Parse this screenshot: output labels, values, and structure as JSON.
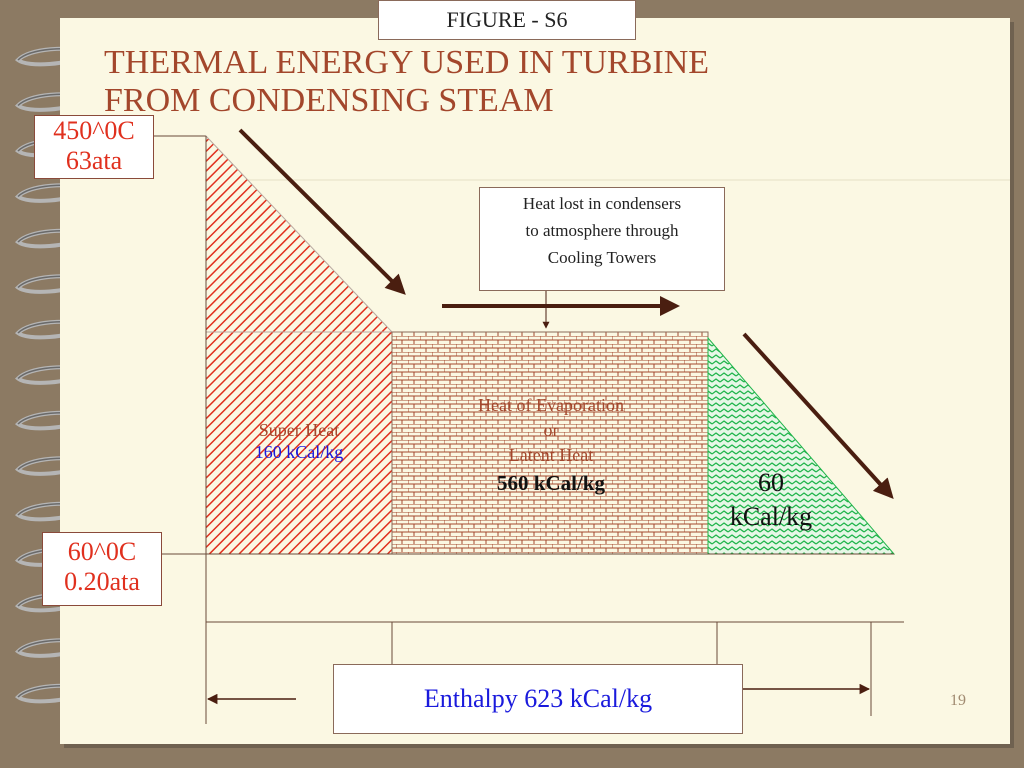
{
  "figure_label": "FIGURE - S6",
  "title": {
    "line1": "THERMAL ENERGY USED IN TURBINE",
    "line2": "FROM CONDENSING STEAM"
  },
  "inlet": {
    "temperature": "450^0C",
    "pressure": "63ata"
  },
  "outlet": {
    "temperature": "60^0C",
    "pressure": "0.20ata"
  },
  "condenser_note": {
    "line1": "Heat lost in condensers",
    "line2": "to atmosphere through",
    "line3": "Cooling Towers"
  },
  "regions": {
    "super_heat": {
      "label": "Super Heat",
      "value": "160 kCal/kg"
    },
    "evaporation": {
      "line1": "Heat of Evaporation",
      "line2": "or",
      "line3": "Latent Heat",
      "value": "560 kCal/kg"
    },
    "sensible": {
      "value_line1": "60",
      "value_line2": "kCal/kg"
    }
  },
  "enthalpy_label": "Enthalpy 623 kCal/kg",
  "page_number": "19",
  "colors": {
    "title": "#a3472c",
    "temperature_text": "#e0301e",
    "blue_text": "#1a1adc",
    "super_heat_hatch": "#e0301e",
    "brick": "#a3472c",
    "green_hatch": "#1fb44a",
    "arrow": "#4a1e10",
    "slide_bg": "#fbf8e3",
    "frame_bg": "#8c7a63"
  }
}
